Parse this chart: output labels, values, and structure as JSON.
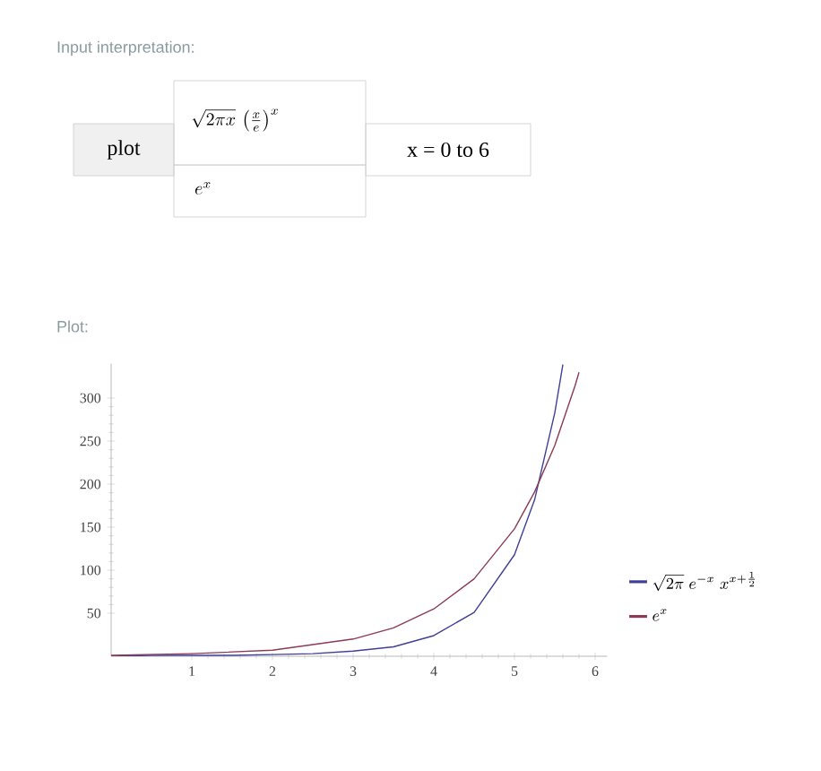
{
  "chart_data": {
    "type": "line",
    "title": "Plot:",
    "annotations": [
      "Input interpretation:",
      "plot",
      "\\sqrt{2\\pi x}\\,\\left(\\frac{x}{e}\\right)^{x}",
      "e^{x}",
      "x = 0 to 6"
    ],
    "series": [
      {
        "name": "\\sqrt{2\\pi}\\;e^{-x}\\;x^{x+\\frac{1}{2}}",
        "color": "#3f3f9a",
        "x": [
          0,
          0.5,
          1,
          1.5,
          2,
          2.5,
          3,
          3.5,
          4,
          4.5,
          5,
          5.25,
          5.5,
          5.6
        ],
        "values": [
          0,
          1,
          1,
          1,
          2,
          3,
          6,
          11,
          24,
          51,
          118,
          182,
          283,
          339
        ]
      },
      {
        "name": "e^{x}",
        "color": "#8c3b52",
        "x": [
          0,
          1,
          2,
          3,
          3.5,
          4,
          4.5,
          5,
          5.25,
          5.5,
          5.75,
          5.8
        ],
        "values": [
          1,
          3,
          7,
          20,
          33,
          55,
          90,
          148,
          191,
          245,
          314,
          330
        ]
      }
    ],
    "xlim": [
      0,
      6.15
    ],
    "ylim": [
      0,
      340
    ],
    "xticks": [
      1,
      2,
      3,
      4,
      5,
      6
    ],
    "yticks": [
      50,
      100,
      150,
      200,
      250,
      300
    ],
    "grid": false,
    "legend": "right",
    "marker": "none",
    "line_style": "solid"
  }
}
